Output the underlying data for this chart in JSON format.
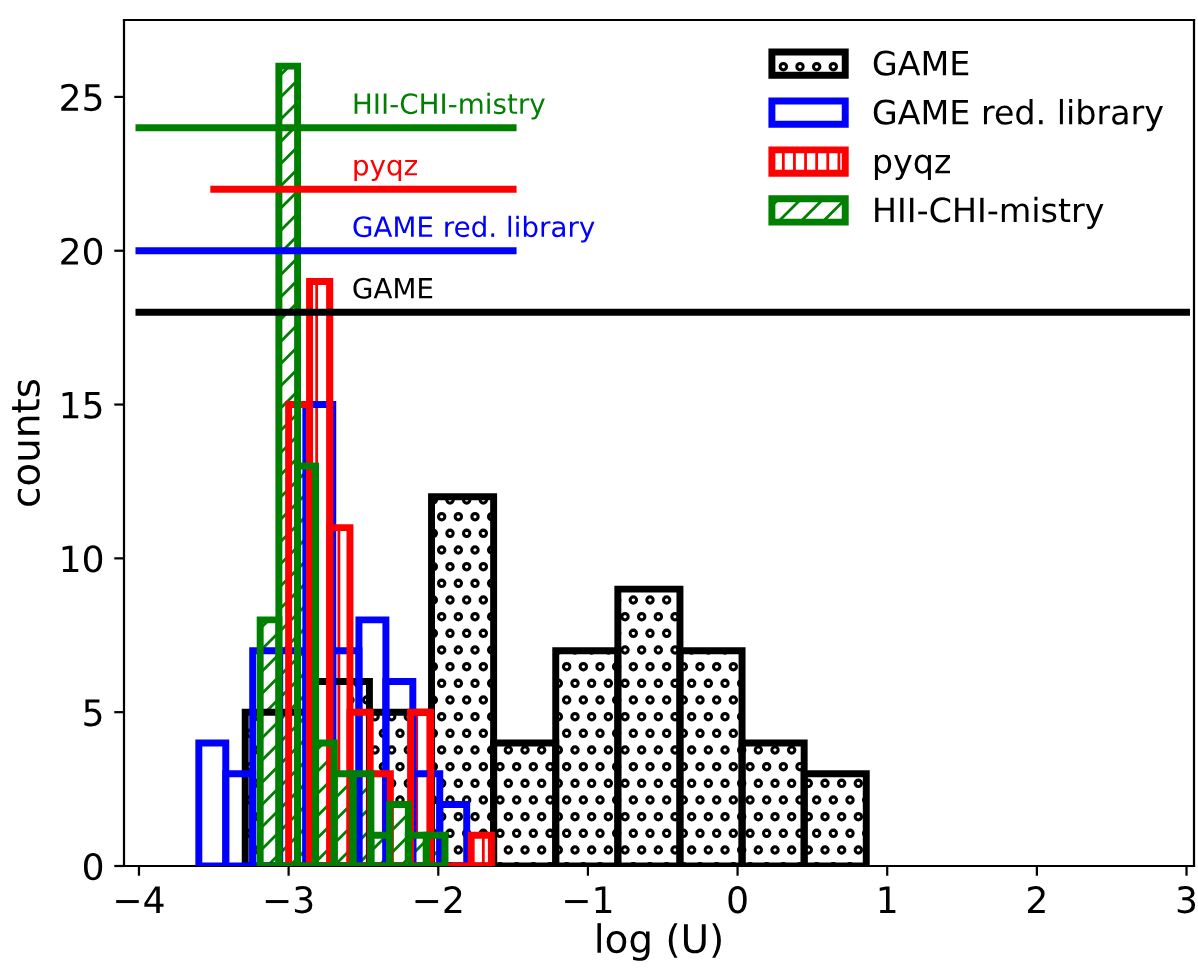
{
  "chart_data": {
    "type": "histogram",
    "xlabel": "log (U)",
    "ylabel": "counts",
    "xlim": [
      -4.1,
      3.05
    ],
    "ylim": [
      0,
      27.5
    ],
    "xticks": [
      {
        "value": -4,
        "label": "−4"
      },
      {
        "value": -3,
        "label": "−3"
      },
      {
        "value": -2,
        "label": "−2"
      },
      {
        "value": -1,
        "label": "−1"
      },
      0,
      1,
      2,
      3
    ],
    "yticks": [
      0,
      5,
      10,
      15,
      20,
      25
    ],
    "grid": false,
    "legend": "top right",
    "series": [
      {
        "name": "GAME",
        "color": "#000000",
        "bins": [
          -3.29,
          -2.875,
          -2.46,
          -2.045,
          -1.63,
          -1.215,
          -0.8,
          -0.385,
          0.03,
          0.445,
          0.86
        ],
        "values": [
          5,
          6,
          5,
          12,
          4,
          7,
          9,
          7,
          4,
          3
        ]
      },
      {
        "name": "GAME red. library",
        "color": "#0000ff",
        "bins": [
          -3.6,
          -3.42,
          -3.24,
          -3.06,
          -2.885,
          -2.705,
          -2.53,
          -2.35,
          -2.17,
          -1.99,
          -1.81
        ],
        "values": [
          4,
          3,
          7,
          7,
          15,
          7,
          8,
          6,
          3,
          2
        ]
      },
      {
        "name": "pyqz",
        "color": "#ff0000",
        "bins": [
          -3.0,
          -2.86,
          -2.725,
          -2.59,
          -2.455,
          -2.32,
          -2.185,
          -2.05,
          -1.78,
          -1.645
        ],
        "values": [
          15,
          19,
          11,
          5,
          3,
          0,
          5,
          0,
          1
        ]
      },
      {
        "name": "HII-CHI-mistry",
        "color": "#008000",
        "bins": [
          -3.19,
          -3.065,
          -2.94,
          -2.82,
          -2.695,
          -2.57,
          -2.45,
          -2.325,
          -2.2,
          -2.08,
          -1.955
        ],
        "values": [
          8,
          26,
          13,
          4,
          3,
          3,
          1,
          2,
          1,
          1
        ]
      },
      {
        "type": "line",
        "color": "#000000",
        "x": [
          -4,
          3
        ],
        "values": [
          18,
          18
        ]
      },
      {
        "type": "line",
        "color": "#0000ff",
        "x": [
          -4,
          -1.5
        ],
        "values": [
          20,
          20
        ]
      },
      {
        "type": "line",
        "color": "#ff0000",
        "x": [
          -3.5,
          -1.5
        ],
        "values": [
          22,
          22
        ]
      },
      {
        "type": "line",
        "color": "#008000",
        "x": [
          -4,
          -1.5
        ],
        "values": [
          24,
          24
        ]
      }
    ],
    "annotations": [
      {
        "text": "GAME",
        "y": 18
      },
      {
        "text": "GAME red. library",
        "y": 20
      },
      {
        "text": "pyqz",
        "y": 22
      },
      {
        "text": "HII-CHI-mistry",
        "y": 24
      }
    ]
  }
}
